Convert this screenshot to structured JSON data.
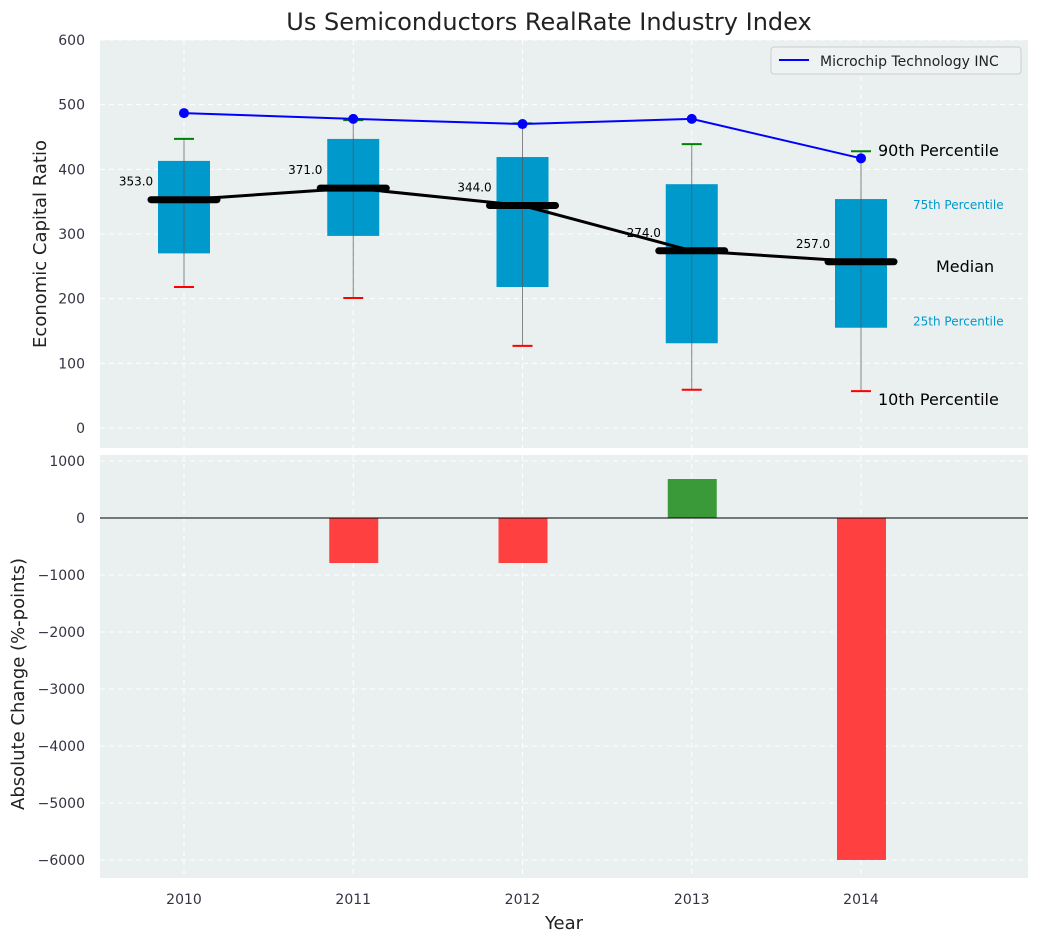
{
  "chart_data": [
    {
      "type": "box",
      "title": "Us Semiconductors RealRate Industry Index",
      "ylabel": "Economic Capital Ratio",
      "ylim": [
        -31,
        600
      ],
      "yticks": [
        0,
        100,
        200,
        300,
        400,
        500,
        600
      ],
      "categories": [
        "2010",
        "2011",
        "2012",
        "2013",
        "2014"
      ],
      "p10": [
        218,
        201,
        127,
        59,
        57
      ],
      "p25": [
        270,
        297,
        218,
        131,
        155
      ],
      "median": [
        353,
        371,
        344,
        274,
        257
      ],
      "median_labels": [
        "353.0",
        "371.0",
        "344.0",
        "274.0",
        "257.0"
      ],
      "p75": [
        413,
        447,
        419,
        377,
        354
      ],
      "p90": [
        447,
        476,
        471,
        439,
        428
      ],
      "series": [
        {
          "name": "Microchip Technology INC",
          "values": [
            487,
            478,
            470,
            478,
            417
          ],
          "color": "#0000ff"
        }
      ],
      "legend": "top-right",
      "annotations": [
        "90th Percentile",
        "75th Percentile",
        "Median",
        "25th Percentile",
        "10th Percentile"
      ],
      "grid": true
    },
    {
      "type": "bar",
      "xlabel": "Year",
      "ylabel": "Absolute Change (%-points)",
      "ylim": [
        -6316,
        1105
      ],
      "yticks": [
        1000,
        0,
        -1000,
        -2000,
        -3000,
        -4000,
        -5000,
        -6000
      ],
      "ytick_labels": [
        "1000",
        "0",
        "−1000",
        "−2000",
        "−3000",
        "−4000",
        "−5000",
        "−6000"
      ],
      "categories": [
        "2010",
        "2011",
        "2012",
        "2013",
        "2014"
      ],
      "values": [
        0,
        -790,
        -790,
        684,
        -6000
      ],
      "colors": {
        "positive": "#3a9a3a",
        "negative": "#ff4040"
      },
      "grid": true
    }
  ],
  "colors": {
    "box": "#0099cc",
    "bg": "#eaeff0",
    "p90": "#008000",
    "p10": "#ff0000"
  }
}
